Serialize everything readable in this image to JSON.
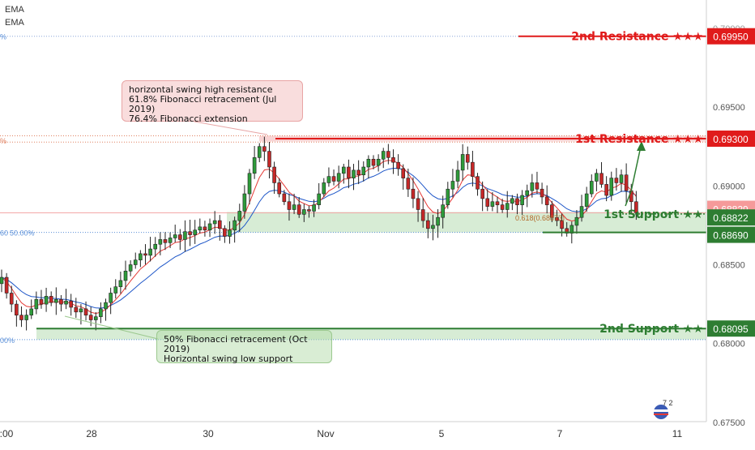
{
  "indicators": [
    "EMA",
    "EMA"
  ],
  "levels": [
    {
      "id": "r2",
      "label": "2nd Resistance ★★★",
      "value": "0.69950",
      "color": "#e01b1b"
    },
    {
      "id": "r1",
      "label": "1st Resistance ★★★",
      "value": "0.69300",
      "color": "#e01b1b"
    },
    {
      "id": "cur",
      "label": "",
      "value": "0.68829",
      "color": "#f08a8a"
    },
    {
      "id": "s1",
      "label": "1st Support ★★",
      "value": "0.68822",
      "color": "#2e7d32"
    },
    {
      "id": "s1b",
      "label": "",
      "value": "0.68690",
      "color": "#2e7d32"
    },
    {
      "id": "s2",
      "label": "2nd Support ★★",
      "value": "0.68095",
      "color": "#2e7d32"
    }
  ],
  "annotations": {
    "resistance_note": [
      "horizontal swing high resistance",
      "61.8% Fibonacci retracement (Jul 2019)",
      "76.4% Fibonacci extension"
    ],
    "support_note": [
      "50% Fibonacci retracement (Oct 2019)",
      "Horizontal swing low support"
    ],
    "fib_label": "0.618(0.68873)",
    "left_fib_labels": [
      "%",
      "%",
      "60",
      "50.00%",
      "00%"
    ]
  },
  "chart_data": {
    "type": "candlestick",
    "y_ticks": [
      "0.69500",
      "0.69000",
      "0.68500",
      "0.68000",
      "0.67500"
    ],
    "y_top_partial": "0.70000",
    "x_ticks": [
      ":00",
      "28",
      "30",
      "Nov",
      "5",
      "7",
      "11"
    ],
    "ylim": [
      0.6735,
      0.7018
    ],
    "series": [
      {
        "name": "EMA",
        "color": "#e53935"
      },
      {
        "name": "EMA",
        "color": "#1e56c8"
      }
    ],
    "closes": [
      0.6842,
      0.6832,
      0.6825,
      0.6818,
      0.6815,
      0.6818,
      0.6822,
      0.6828,
      0.6825,
      0.683,
      0.6826,
      0.6828,
      0.6825,
      0.6827,
      0.6823,
      0.682,
      0.6822,
      0.6818,
      0.6815,
      0.6817,
      0.6822,
      0.6826,
      0.6832,
      0.6836,
      0.684,
      0.6846,
      0.685,
      0.6853,
      0.6857,
      0.6856,
      0.686,
      0.6863,
      0.6866,
      0.6864,
      0.6867,
      0.6869,
      0.6866,
      0.6871,
      0.6869,
      0.6872,
      0.6874,
      0.6872,
      0.6876,
      0.6878,
      0.6873,
      0.6868,
      0.6872,
      0.6878,
      0.6884,
      0.6895,
      0.6908,
      0.6918,
      0.6925,
      0.6922,
      0.6912,
      0.6902,
      0.6895,
      0.689,
      0.6885,
      0.6888,
      0.6882,
      0.6885,
      0.6884,
      0.6888,
      0.6895,
      0.6902,
      0.6906,
      0.6903,
      0.6908,
      0.6912,
      0.6905,
      0.691,
      0.6907,
      0.6912,
      0.6917,
      0.6913,
      0.6917,
      0.6922,
      0.6918,
      0.6915,
      0.6911,
      0.6905,
      0.6898,
      0.6892,
      0.6885,
      0.6878,
      0.6873,
      0.6875,
      0.688,
      0.6888,
      0.6898,
      0.6903,
      0.691,
      0.692,
      0.6915,
      0.6906,
      0.6898,
      0.6892,
      0.6887,
      0.689,
      0.6888,
      0.6885,
      0.6889,
      0.6892,
      0.6888,
      0.6894,
      0.6897,
      0.6902,
      0.6898,
      0.6893,
      0.6888,
      0.688,
      0.6878,
      0.6873,
      0.687,
      0.6875,
      0.688,
      0.6887,
      0.6895,
      0.6903,
      0.6908,
      0.6901,
      0.6894,
      0.6905,
      0.6902,
      0.6907,
      0.6897,
      0.689,
      0.6883
    ]
  },
  "logo_text": "7 2"
}
